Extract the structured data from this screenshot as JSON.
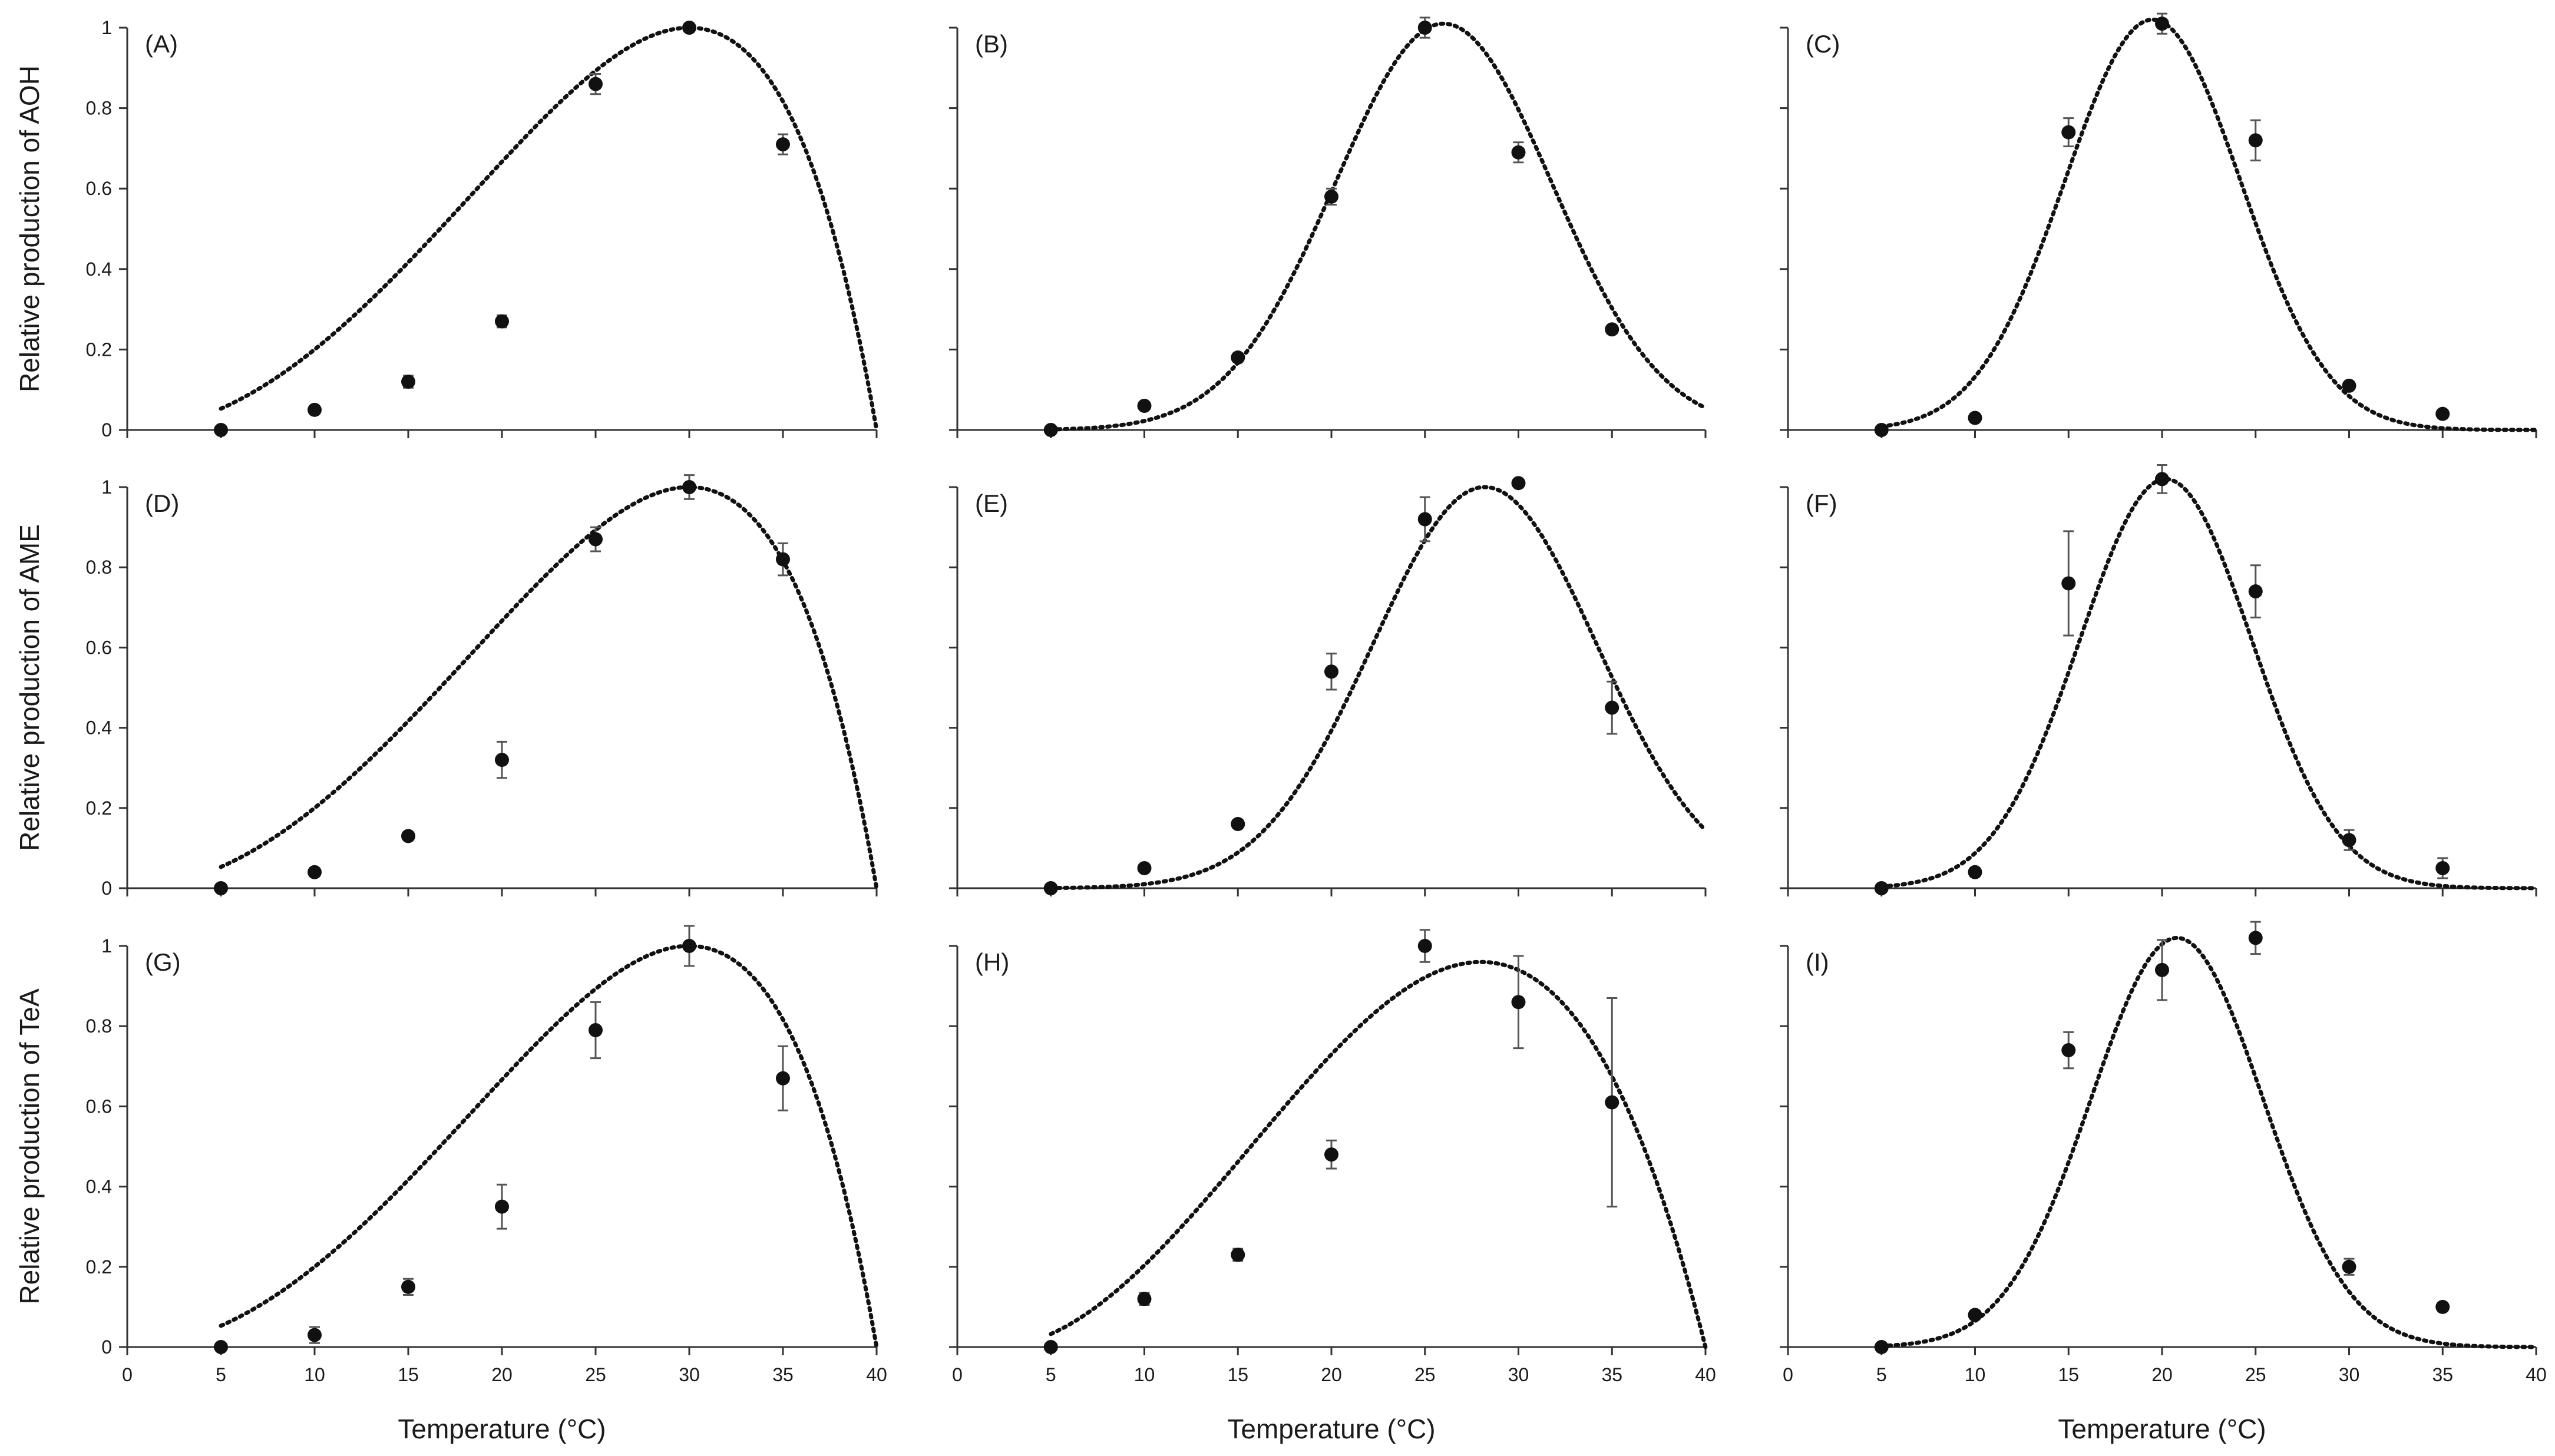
{
  "chart_data": {
    "type": "scatter",
    "layout_grid": "3x3",
    "fit_line": "dotted",
    "xlim": [
      0,
      40
    ],
    "ylim": [
      0,
      1
    ],
    "x_ticks": [
      0,
      5,
      10,
      15,
      20,
      25,
      30,
      35,
      40
    ],
    "y_ticks": [
      "0",
      "0.2",
      "0.4",
      "0.6",
      "0.8",
      "1"
    ],
    "x_values": [
      5,
      10,
      15,
      20,
      25,
      30,
      35
    ],
    "xlabel": "Temperature (°C)",
    "row_ylabels": [
      "Relative production of AOH",
      "Relative production of AME",
      "Relative production of TeA"
    ],
    "colors": {
      "points": "#111111",
      "curve": "#111111",
      "axes": "#333333",
      "error_bars": "#555555"
    },
    "panels": [
      {
        "label": "(A)",
        "y": [
          0.0,
          0.05,
          0.12,
          0.27,
          0.86,
          1.0,
          0.71
        ],
        "err": [
          0,
          0,
          0.015,
          0.015,
          0.025,
          0,
          0.025
        ],
        "fit": {
          "tmin": 0,
          "topt": 30,
          "tmax": 40,
          "peak": 1.0
        }
      },
      {
        "label": "(B)",
        "y": [
          0.0,
          0.06,
          0.18,
          0.58,
          1.0,
          0.69,
          0.25
        ],
        "err": [
          0,
          0,
          0.01,
          0.02,
          0.025,
          0.025,
          0.01
        ],
        "fit": {
          "mu": 26,
          "sigma": 5.8,
          "peak": 1.01
        }
      },
      {
        "label": "(C)",
        "y": [
          0.0,
          0.03,
          0.74,
          1.01,
          0.72,
          0.11,
          0.04
        ],
        "err": [
          0,
          0,
          0.035,
          0.025,
          0.05,
          0,
          0
        ],
        "fit": {
          "mu": 19.5,
          "sigma": 4.7,
          "peak": 1.02
        }
      },
      {
        "label": "(D)",
        "y": [
          0.0,
          0.04,
          0.13,
          0.32,
          0.87,
          1.0,
          0.82
        ],
        "err": [
          0,
          0,
          0.01,
          0.045,
          0.03,
          0.03,
          0.04
        ],
        "fit": {
          "tmin": 0,
          "topt": 30,
          "tmax": 40,
          "peak": 1.0
        }
      },
      {
        "label": "(E)",
        "y": [
          0.0,
          0.05,
          0.16,
          0.54,
          0.92,
          1.01,
          0.45
        ],
        "err": [
          0,
          0,
          0.01,
          0.045,
          0.055,
          0,
          0.065
        ],
        "fit": {
          "mu": 28.2,
          "sigma": 6.0,
          "peak": 1.0
        }
      },
      {
        "label": "(F)",
        "y": [
          0.0,
          0.04,
          0.76,
          1.02,
          0.74,
          0.12,
          0.05
        ],
        "err": [
          0,
          0,
          0.13,
          0.035,
          0.065,
          0.025,
          0.025
        ],
        "fit": {
          "mu": 20.2,
          "sigma": 4.6,
          "peak": 1.02
        }
      },
      {
        "label": "(G)",
        "y": [
          0.0,
          0.03,
          0.15,
          0.35,
          0.79,
          1.0,
          0.67
        ],
        "err": [
          0,
          0.02,
          0.02,
          0.055,
          0.07,
          0.05,
          0.08
        ],
        "fit": {
          "tmin": 0,
          "topt": 30,
          "tmax": 40,
          "peak": 1.0
        }
      },
      {
        "label": "(H)",
        "y": [
          0.0,
          0.12,
          0.23,
          0.48,
          1.0,
          0.86,
          0.61
        ],
        "err": [
          0,
          0.015,
          0.015,
          0.035,
          0.04,
          0.115,
          0.26
        ],
        "fit": {
          "tmin": 2,
          "topt": 28,
          "tmax": 40,
          "peak": 0.96
        }
      },
      {
        "label": "(I)",
        "y": [
          0.0,
          0.08,
          0.74,
          0.94,
          1.02,
          0.2,
          0.1
        ],
        "err": [
          0,
          0,
          0.045,
          0.075,
          0.04,
          0.02,
          0
        ],
        "fit": {
          "mu": 20.8,
          "sigma": 4.6,
          "peak": 1.02
        }
      }
    ]
  }
}
